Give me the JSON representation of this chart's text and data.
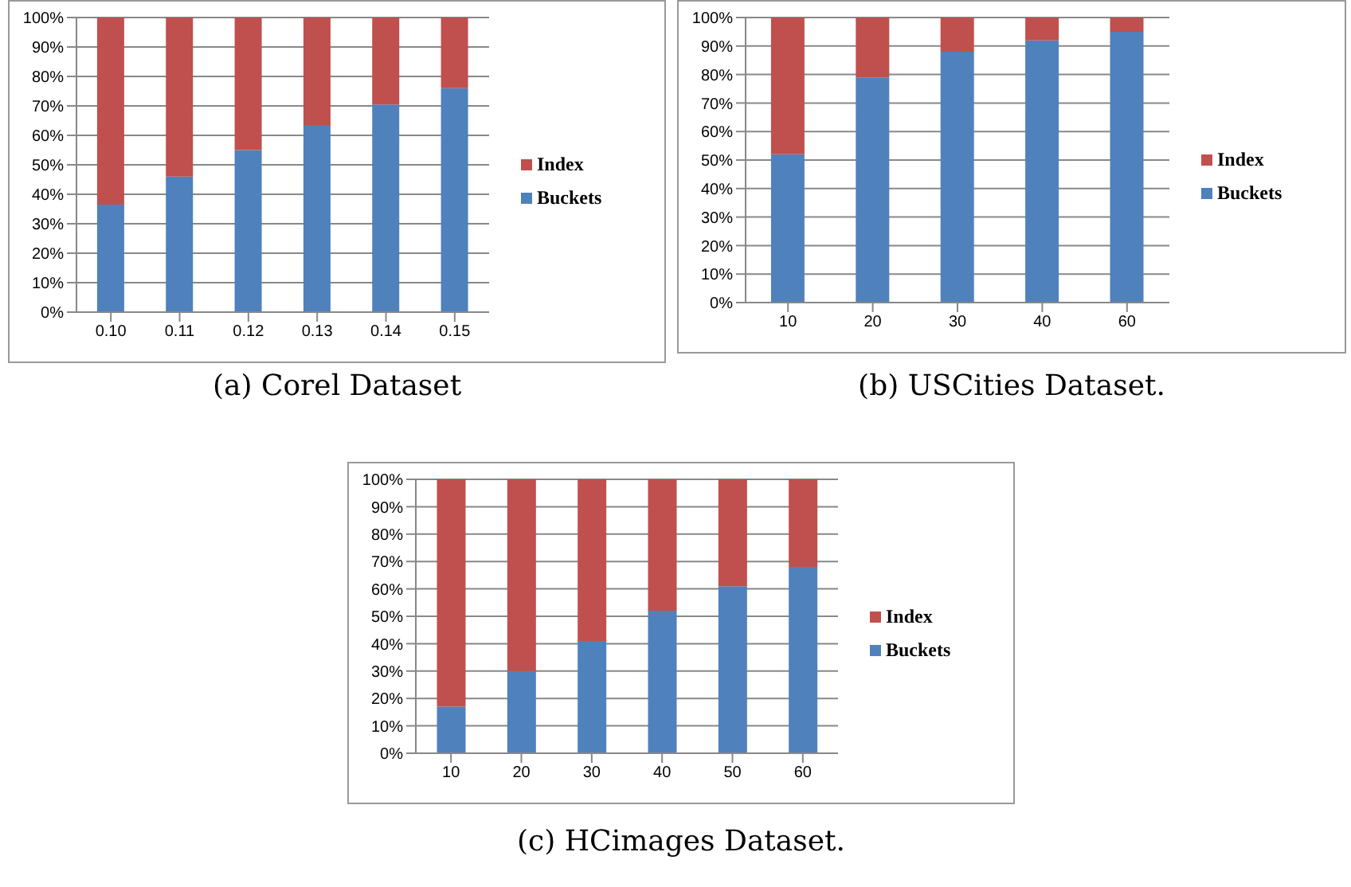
{
  "chart_data": [
    {
      "type": "bar",
      "title": "(a) Corel Dataset",
      "categories": [
        "0.10",
        "0.11",
        "0.12",
        "0.13",
        "0.14",
        "0.15"
      ],
      "stacked": true,
      "legend": "right",
      "grid": "y",
      "ylim": [
        0,
        100
      ],
      "yticks": [
        {
          "value": 0,
          "label": "0%"
        },
        {
          "value": 10,
          "label": "10%"
        },
        {
          "value": 20,
          "label": "20%"
        },
        {
          "value": 30,
          "label": "30%"
        },
        {
          "value": 40,
          "label": "40%"
        },
        {
          "value": 50,
          "label": "50%"
        },
        {
          "value": 60,
          "label": "60%"
        },
        {
          "value": 70,
          "label": "70%"
        },
        {
          "value": 80,
          "label": "80%"
        },
        {
          "value": 90,
          "label": "90%"
        },
        {
          "value": 100,
          "label": "100%"
        }
      ],
      "series": [
        {
          "name": "Buckets",
          "color": "#4f81bd",
          "values": [
            36.5,
            46,
            55,
            63.5,
            70.5,
            76
          ]
        },
        {
          "name": "Index",
          "color": "#c0504d",
          "values": [
            63.5,
            54,
            45,
            36.5,
            29.5,
            24
          ]
        }
      ]
    },
    {
      "type": "bar",
      "title": "(b) USCities Dataset.",
      "categories": [
        "10",
        "20",
        "30",
        "40",
        "60"
      ],
      "stacked": true,
      "legend": "right",
      "grid": "y",
      "ylim": [
        0,
        100
      ],
      "yticks": [
        {
          "value": 0,
          "label": "0%"
        },
        {
          "value": 10,
          "label": "10%"
        },
        {
          "value": 20,
          "label": "20%"
        },
        {
          "value": 30,
          "label": "30%"
        },
        {
          "value": 40,
          "label": "40%"
        },
        {
          "value": 50,
          "label": "50%"
        },
        {
          "value": 60,
          "label": "60%"
        },
        {
          "value": 70,
          "label": "70%"
        },
        {
          "value": 80,
          "label": "80%"
        },
        {
          "value": 90,
          "label": "90%"
        },
        {
          "value": 100,
          "label": "100%"
        }
      ],
      "series": [
        {
          "name": "Buckets",
          "color": "#4f81bd",
          "values": [
            52,
            79,
            88,
            92,
            95
          ]
        },
        {
          "name": "Index",
          "color": "#c0504d",
          "values": [
            48,
            21,
            12,
            8,
            5
          ]
        }
      ]
    },
    {
      "type": "bar",
      "title": "(c) HCimages Dataset.",
      "categories": [
        "10",
        "20",
        "30",
        "40",
        "50",
        "60"
      ],
      "stacked": true,
      "legend": "right",
      "grid": "y",
      "ylim": [
        0,
        100
      ],
      "yticks": [
        {
          "value": 0,
          "label": "0%"
        },
        {
          "value": 10,
          "label": "10%"
        },
        {
          "value": 20,
          "label": "20%"
        },
        {
          "value": 30,
          "label": "30%"
        },
        {
          "value": 40,
          "label": "40%"
        },
        {
          "value": 50,
          "label": "50%"
        },
        {
          "value": 60,
          "label": "60%"
        },
        {
          "value": 70,
          "label": "70%"
        },
        {
          "value": 80,
          "label": "80%"
        },
        {
          "value": 90,
          "label": "90%"
        },
        {
          "value": 100,
          "label": "100%"
        }
      ],
      "series": [
        {
          "name": "Buckets",
          "color": "#4f81bd",
          "values": [
            17,
            30,
            41,
            52,
            61,
            68
          ]
        },
        {
          "name": "Index",
          "color": "#c0504d",
          "values": [
            83,
            70,
            59,
            48,
            39,
            32
          ]
        }
      ]
    }
  ]
}
